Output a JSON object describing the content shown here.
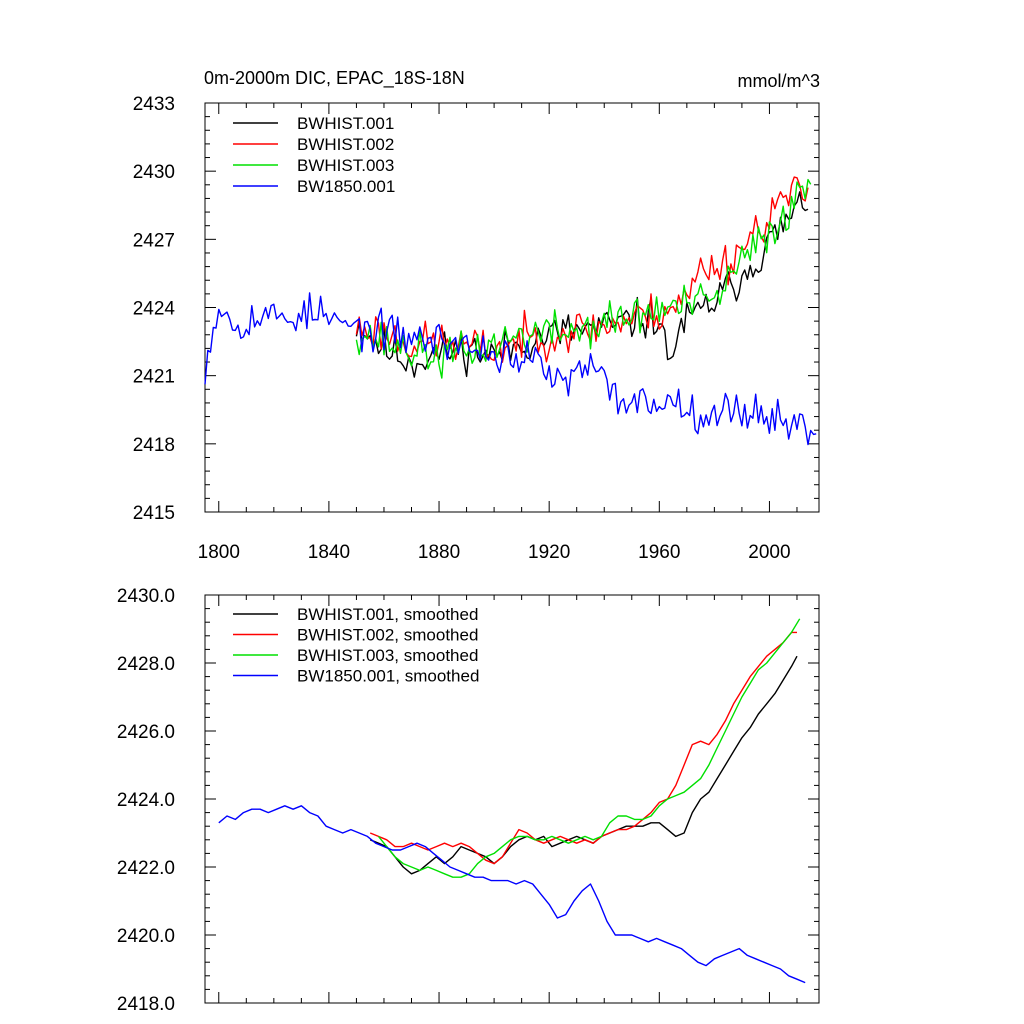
{
  "chart_data": [
    {
      "id": "annual",
      "type": "line",
      "title": "0m-2000m DIC, EPAC_18S-18N",
      "units": "mmol/m^3",
      "xlabel": "",
      "ylabel": "",
      "xlim": [
        1795,
        2018
      ],
      "ylim": [
        2415,
        2433
      ],
      "xticks": [
        1800,
        1840,
        1880,
        1920,
        1960,
        2000
      ],
      "yticks": [
        2415,
        2418,
        2421,
        2424,
        2427,
        2430,
        2433
      ],
      "ytick_labels": [
        "2415",
        "2418",
        "2421",
        "2424",
        "2427",
        "2430",
        "2433"
      ],
      "legend_position": "top-left",
      "series": [
        {
          "name": "BWHIST.001",
          "color": "#000000",
          "anchor_years": [
            1850,
            1860,
            1870,
            1880,
            1890,
            1900,
            1910,
            1920,
            1930,
            1940,
            1950,
            1960,
            1963,
            1968,
            1975,
            1985,
            1995,
            2005,
            2014
          ],
          "anchor_values": [
            2423.3,
            2422.2,
            2421.6,
            2422.0,
            2422.2,
            2421.9,
            2422.4,
            2422.8,
            2423.0,
            2423.1,
            2423.4,
            2423.6,
            2421.6,
            2423.2,
            2423.8,
            2424.8,
            2426.1,
            2427.6,
            2428.8
          ],
          "noise": 0.75,
          "seed": 11
        },
        {
          "name": "BWHIST.002",
          "color": "#ff0000",
          "anchor_years": [
            1850,
            1860,
            1870,
            1880,
            1890,
            1900,
            1910,
            1920,
            1930,
            1940,
            1950,
            1960,
            1970,
            1975,
            1985,
            1995,
            2005,
            2014
          ],
          "anchor_values": [
            2423.1,
            2422.9,
            2422.4,
            2422.5,
            2422.3,
            2422.1,
            2422.6,
            2422.8,
            2423.0,
            2423.2,
            2423.5,
            2423.8,
            2424.4,
            2425.7,
            2426.0,
            2427.4,
            2428.8,
            2429.1
          ],
          "noise": 0.75,
          "seed": 23
        },
        {
          "name": "BWHIST.003",
          "color": "#00e000",
          "anchor_years": [
            1850,
            1860,
            1870,
            1880,
            1890,
            1900,
            1910,
            1920,
            1930,
            1940,
            1950,
            1960,
            1970,
            1980,
            1990,
            2000,
            2010,
            2015
          ],
          "anchor_values": [
            2423.0,
            2422.5,
            2422.1,
            2421.8,
            2422.0,
            2422.4,
            2422.8,
            2422.9,
            2423.0,
            2423.3,
            2423.6,
            2423.9,
            2424.1,
            2424.3,
            2426.0,
            2427.3,
            2428.8,
            2429.6
          ],
          "noise": 0.75,
          "seed": 37
        },
        {
          "name": "BW1850.001",
          "color": "#0000ff",
          "anchor_years": [
            1795,
            1800,
            1805,
            1815,
            1825,
            1835,
            1845,
            1855,
            1865,
            1875,
            1885,
            1895,
            1905,
            1915,
            1925,
            1935,
            1945,
            1955,
            1965,
            1975,
            1985,
            1995,
            2005,
            2017
          ],
          "anchor_values": [
            2421.5,
            2424.2,
            2423.3,
            2423.6,
            2423.6,
            2423.8,
            2423.2,
            2423.0,
            2422.8,
            2422.6,
            2422.5,
            2422.1,
            2421.9,
            2421.6,
            2420.6,
            2421.4,
            2420.0,
            2419.8,
            2419.9,
            2419.4,
            2419.4,
            2419.5,
            2419.0,
            2418.6
          ],
          "noise": 0.7,
          "seed": 53
        }
      ]
    },
    {
      "id": "smoothed",
      "type": "line",
      "title": "",
      "units": "",
      "xlabel": "",
      "ylabel": "",
      "xlim": [
        1795,
        2018
      ],
      "ylim": [
        2418.0,
        2430.0
      ],
      "xticks": [
        1800,
        1840,
        1880,
        1920,
        1960,
        2000
      ],
      "yticks": [
        2418,
        2420,
        2422,
        2424,
        2426,
        2428,
        2430
      ],
      "ytick_labels": [
        "2418.0",
        "2420.0",
        "2422.0",
        "2424.0",
        "2426.0",
        "2428.0",
        "2430.0"
      ],
      "legend_position": "top-left",
      "series": [
        {
          "name": "BWHIST.001, smoothed",
          "color": "#000000",
          "years": [
            1855,
            1858,
            1861,
            1864,
            1867,
            1870,
            1873,
            1876,
            1879,
            1882,
            1885,
            1888,
            1891,
            1894,
            1897,
            1900,
            1903,
            1906,
            1909,
            1912,
            1915,
            1918,
            1921,
            1924,
            1927,
            1930,
            1933,
            1936,
            1939,
            1942,
            1945,
            1948,
            1951,
            1954,
            1957,
            1960,
            1963,
            1966,
            1969,
            1972,
            1975,
            1978,
            1981,
            1984,
            1987,
            1990,
            1993,
            1996,
            1999,
            2002,
            2005,
            2008,
            2010
          ],
          "values": [
            2422.8,
            2422.7,
            2422.6,
            2422.3,
            2422.0,
            2421.8,
            2421.9,
            2422.1,
            2422.3,
            2422.1,
            2422.3,
            2422.6,
            2422.5,
            2422.4,
            2422.3,
            2422.1,
            2422.3,
            2422.6,
            2422.8,
            2422.9,
            2422.8,
            2422.9,
            2422.6,
            2422.7,
            2422.8,
            2422.9,
            2422.8,
            2422.7,
            2422.9,
            2423.0,
            2423.1,
            2423.2,
            2423.2,
            2423.2,
            2423.3,
            2423.3,
            2423.1,
            2422.9,
            2423.0,
            2423.6,
            2424.0,
            2424.2,
            2424.6,
            2425.0,
            2425.4,
            2425.8,
            2426.1,
            2426.5,
            2426.8,
            2427.1,
            2427.5,
            2427.9,
            2428.2
          ]
        },
        {
          "name": "BWHIST.002, smoothed",
          "color": "#ff0000",
          "years": [
            1855,
            1858,
            1861,
            1864,
            1867,
            1870,
            1873,
            1876,
            1879,
            1882,
            1885,
            1888,
            1891,
            1894,
            1897,
            1900,
            1903,
            1906,
            1909,
            1912,
            1915,
            1918,
            1921,
            1924,
            1927,
            1930,
            1933,
            1936,
            1939,
            1942,
            1945,
            1948,
            1951,
            1954,
            1957,
            1960,
            1963,
            1966,
            1969,
            1972,
            1975,
            1978,
            1981,
            1984,
            1987,
            1990,
            1993,
            1996,
            1999,
            2002,
            2005,
            2008,
            2010
          ],
          "values": [
            2423.0,
            2422.9,
            2422.8,
            2422.6,
            2422.6,
            2422.7,
            2422.6,
            2422.5,
            2422.6,
            2422.7,
            2422.6,
            2422.7,
            2422.6,
            2422.4,
            2422.2,
            2422.1,
            2422.3,
            2422.7,
            2423.1,
            2423.0,
            2422.8,
            2422.7,
            2422.8,
            2422.9,
            2422.8,
            2422.7,
            2422.8,
            2422.7,
            2422.9,
            2423.0,
            2423.1,
            2423.1,
            2423.2,
            2423.4,
            2423.6,
            2423.9,
            2424.0,
            2424.4,
            2425.0,
            2425.6,
            2425.7,
            2425.6,
            2425.9,
            2426.3,
            2426.8,
            2427.2,
            2427.6,
            2427.9,
            2428.2,
            2428.4,
            2428.6,
            2428.9,
            2428.9
          ]
        },
        {
          "name": "BWHIST.003, smoothed",
          "color": "#00e000",
          "years": [
            1858,
            1861,
            1864,
            1867,
            1870,
            1873,
            1876,
            1879,
            1882,
            1885,
            1888,
            1891,
            1894,
            1897,
            1900,
            1903,
            1906,
            1909,
            1912,
            1915,
            1918,
            1921,
            1924,
            1927,
            1930,
            1933,
            1936,
            1939,
            1942,
            1945,
            1948,
            1951,
            1954,
            1957,
            1960,
            1963,
            1966,
            1969,
            1972,
            1975,
            1978,
            1981,
            1984,
            1987,
            1990,
            1993,
            1996,
            1999,
            2002,
            2005,
            2008,
            2011
          ],
          "values": [
            2422.9,
            2422.6,
            2422.3,
            2422.1,
            2422.0,
            2421.9,
            2422.0,
            2421.9,
            2421.8,
            2421.7,
            2421.7,
            2421.8,
            2422.1,
            2422.3,
            2422.4,
            2422.6,
            2422.8,
            2422.9,
            2422.9,
            2422.8,
            2422.8,
            2422.9,
            2422.8,
            2422.7,
            2422.8,
            2422.9,
            2422.8,
            2422.9,
            2423.3,
            2423.5,
            2423.5,
            2423.4,
            2423.4,
            2423.5,
            2423.8,
            2424.0,
            2424.1,
            2424.2,
            2424.4,
            2424.6,
            2425.0,
            2425.5,
            2426.0,
            2426.5,
            2427.0,
            2427.4,
            2427.8,
            2428.0,
            2428.3,
            2428.6,
            2428.9,
            2429.3
          ]
        },
        {
          "name": "BW1850.001, smoothed",
          "color": "#0000ff",
          "years": [
            1800,
            1803,
            1806,
            1809,
            1812,
            1815,
            1818,
            1821,
            1824,
            1827,
            1830,
            1833,
            1836,
            1839,
            1842,
            1845,
            1848,
            1851,
            1854,
            1857,
            1860,
            1863,
            1866,
            1869,
            1872,
            1875,
            1878,
            1881,
            1884,
            1887,
            1890,
            1893,
            1896,
            1899,
            1902,
            1905,
            1908,
            1911,
            1914,
            1917,
            1920,
            1923,
            1926,
            1929,
            1932,
            1935,
            1938,
            1941,
            1944,
            1947,
            1950,
            1953,
            1956,
            1959,
            1962,
            1965,
            1968,
            1971,
            1974,
            1977,
            1980,
            1983,
            1986,
            1989,
            1992,
            1995,
            1998,
            2001,
            2004,
            2007,
            2010,
            2013
          ],
          "values": [
            2423.3,
            2423.5,
            2423.4,
            2423.6,
            2423.7,
            2423.7,
            2423.6,
            2423.7,
            2423.8,
            2423.7,
            2423.8,
            2423.6,
            2423.5,
            2423.2,
            2423.1,
            2423.0,
            2423.1,
            2423.0,
            2422.9,
            2422.7,
            2422.6,
            2422.5,
            2422.5,
            2422.6,
            2422.7,
            2422.6,
            2422.4,
            2422.2,
            2422.0,
            2421.9,
            2421.8,
            2421.7,
            2421.7,
            2421.6,
            2421.6,
            2421.6,
            2421.5,
            2421.6,
            2421.5,
            2421.2,
            2420.9,
            2420.5,
            2420.6,
            2421.0,
            2421.3,
            2421.5,
            2421.0,
            2420.4,
            2420.0,
            2420.0,
            2420.0,
            2419.9,
            2419.8,
            2419.9,
            2419.8,
            2419.7,
            2419.6,
            2419.4,
            2419.2,
            2419.1,
            2419.3,
            2419.4,
            2419.5,
            2419.6,
            2419.4,
            2419.3,
            2419.2,
            2419.1,
            2419.0,
            2418.8,
            2418.7,
            2418.6
          ]
        }
      ]
    }
  ]
}
